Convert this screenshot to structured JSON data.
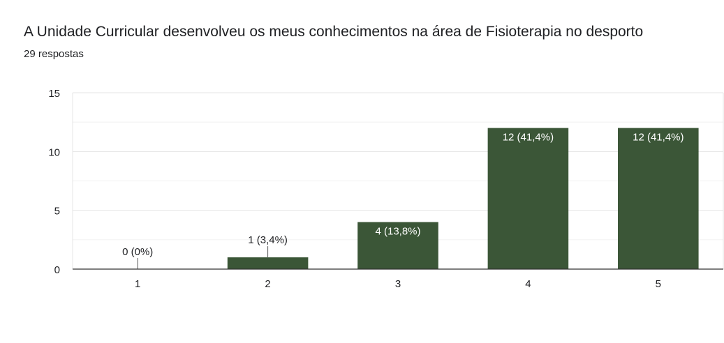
{
  "header": {
    "title": "A Unidade Curricular desenvolveu os meus conhecimentos na área de Fisioterapia no desporto",
    "responses": "29 respostas"
  },
  "colors": {
    "bar": "#3b5637",
    "grid": "#e4e4e4",
    "axis": "#333333",
    "text": "#202124",
    "inside_label": "#ffffff"
  },
  "chart_data": {
    "type": "bar",
    "categories": [
      "1",
      "2",
      "3",
      "4",
      "5"
    ],
    "values": [
      0,
      1,
      4,
      12,
      12
    ],
    "data_labels": [
      "0 (0%)",
      "1 (3,4%)",
      "4 (13,8%)",
      "12 (41,4%)",
      "12 (41,4%)"
    ],
    "title": "A Unidade Curricular desenvolveu os meus conhecimentos na área de Fisioterapia no desporto",
    "xlabel": "",
    "ylabel": "",
    "ylim": [
      0,
      15
    ],
    "yticks": [
      0,
      5,
      10,
      15
    ],
    "minor_grid_step": 2.5,
    "grid": true,
    "legend": "none"
  }
}
